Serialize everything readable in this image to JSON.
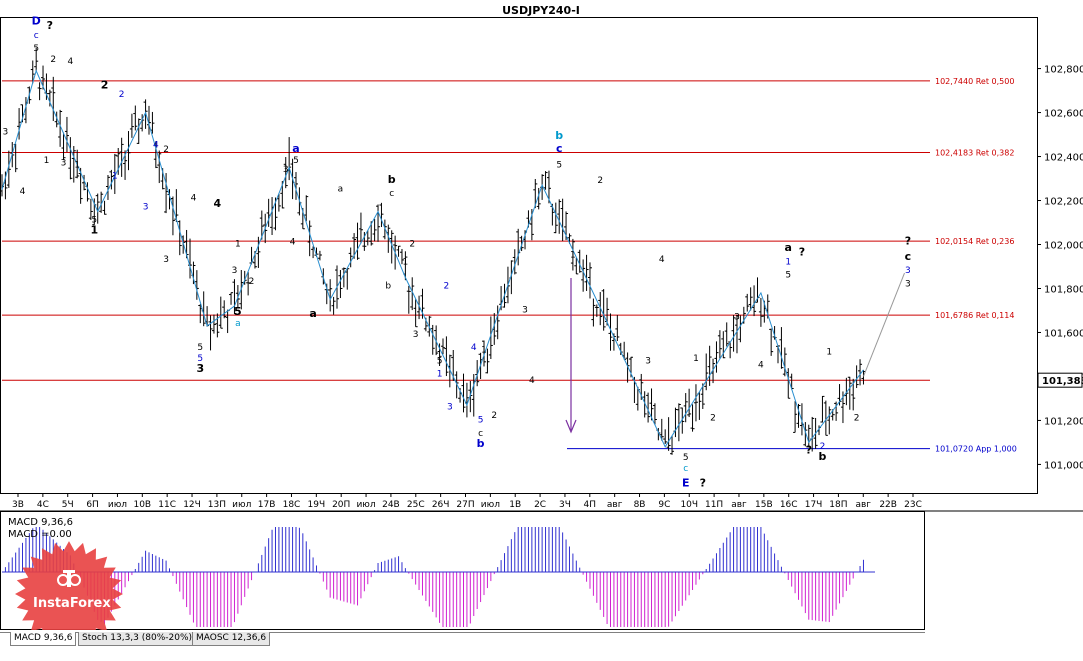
{
  "window": {
    "title": "USDJPY240-I"
  },
  "price_axis": {
    "labels": [
      "102,800",
      "102,600",
      "102,400",
      "102,200",
      "102,000",
      "101,800",
      "101,600",
      "101,400",
      "101,200",
      "101,000"
    ],
    "current_price": "101,383"
  },
  "time_axis": {
    "labels": [
      "3В",
      "4С",
      "5Ч",
      "6П",
      "июл",
      "10В",
      "11С",
      "12Ч",
      "13П",
      "июл",
      "17В",
      "18С",
      "19Ч",
      "20П",
      "июл",
      "24В",
      "25С",
      "26Ч",
      "27П",
      "июл",
      "1В",
      "2С",
      "3Ч",
      "4П",
      "авг",
      "8В",
      "9С",
      "10Ч",
      "11П",
      "авг",
      "15В",
      "16С",
      "17Ч",
      "18П",
      "авг",
      "22В",
      "23С"
    ]
  },
  "fib_levels": [
    {
      "label": "102,7440 Ret 0,500",
      "value": 102.744,
      "color": "#cc0000"
    },
    {
      "label": "102,4183 Ret 0,382",
      "value": 102.4183,
      "color": "#cc0000"
    },
    {
      "label": "102,0154 Ret 0,236",
      "value": 102.0154,
      "color": "#cc0000"
    },
    {
      "label": "101,6786 Ret 0,114",
      "value": 101.6786,
      "color": "#cc0000"
    },
    {
      "label": "",
      "value": 101.383,
      "color": "#cc0000"
    },
    {
      "label": "101,0720 App 1,000",
      "value": 101.072,
      "color": "#0000cc"
    }
  ],
  "chart_data": {
    "type": "line",
    "title": "USDJPY240-I",
    "ylim": [
      100.87,
      103.03
    ],
    "wave_path_points": [
      {
        "bar": 0,
        "price": 102.25
      },
      {
        "bar": 10,
        "price": 102.79
      },
      {
        "bar": 28,
        "price": 102.15
      },
      {
        "bar": 42,
        "price": 102.6
      },
      {
        "bar": 60,
        "price": 101.63
      },
      {
        "bar": 68,
        "price": 101.72
      },
      {
        "bar": 84,
        "price": 102.35
      },
      {
        "bar": 96,
        "price": 101.75
      },
      {
        "bar": 110,
        "price": 102.15
      },
      {
        "bar": 118,
        "price": 101.85
      },
      {
        "bar": 136,
        "price": 101.27
      },
      {
        "bar": 158,
        "price": 102.27
      },
      {
        "bar": 176,
        "price": 101.68
      },
      {
        "bar": 194,
        "price": 101.08
      },
      {
        "bar": 222,
        "price": 101.78
      },
      {
        "bar": 236,
        "price": 101.1
      },
      {
        "bar": 252,
        "price": 101.43
      }
    ],
    "projection": [
      {
        "bar": 252,
        "price": 101.4
      },
      {
        "bar": 264,
        "price": 101.87
      }
    ],
    "wave_labels": [
      {
        "text": "D",
        "bar": 10,
        "price": 103.0,
        "color": "#0000cc",
        "bold": true
      },
      {
        "text": "?",
        "bar": 14,
        "price": 102.98,
        "color": "#000",
        "bold": true
      },
      {
        "text": "c",
        "bar": 10,
        "price": 102.94,
        "color": "#0000cc",
        "bold": false
      },
      {
        "text": "5",
        "bar": 10,
        "price": 102.88,
        "color": "#000",
        "bold": false
      },
      {
        "text": "2",
        "bar": 15,
        "price": 102.83,
        "color": "#000",
        "bold": false
      },
      {
        "text": "4",
        "bar": 20,
        "price": 102.82,
        "color": "#000",
        "bold": false
      },
      {
        "text": "3",
        "bar": 1,
        "price": 102.5,
        "color": "#000",
        "bold": false
      },
      {
        "text": "4",
        "bar": 6,
        "price": 102.23,
        "color": "#000",
        "bold": false
      },
      {
        "text": "1",
        "bar": 13,
        "price": 102.37,
        "color": "#000",
        "bold": false
      },
      {
        "text": "3",
        "bar": 18,
        "price": 102.36,
        "color": "#000",
        "bold": false
      },
      {
        "text": "1",
        "bar": 22,
        "price": 102.35,
        "color": "#000",
        "bold": false
      },
      {
        "text": "2",
        "bar": 30,
        "price": 102.71,
        "color": "#000",
        "bold": true
      },
      {
        "text": "2",
        "bar": 35,
        "price": 102.67,
        "color": "#0000cc",
        "bold": false
      },
      {
        "text": "5",
        "bar": 27,
        "price": 102.1,
        "color": "#000",
        "bold": false
      },
      {
        "text": "1",
        "bar": 27,
        "price": 102.05,
        "color": "#000",
        "bold": true
      },
      {
        "text": "1",
        "bar": 33,
        "price": 102.3,
        "color": "#0000cc",
        "bold": false
      },
      {
        "text": "3",
        "bar": 42,
        "price": 102.16,
        "color": "#0000cc",
        "bold": false
      },
      {
        "text": "4",
        "bar": 45,
        "price": 102.44,
        "color": "#0000cc",
        "bold": false
      },
      {
        "text": "2",
        "bar": 48,
        "price": 102.42,
        "color": "#000",
        "bold": false
      },
      {
        "text": "4",
        "bar": 56,
        "price": 102.2,
        "color": "#000",
        "bold": false
      },
      {
        "text": "3",
        "bar": 48,
        "price": 101.92,
        "color": "#000",
        "bold": false
      },
      {
        "text": "4",
        "bar": 63,
        "price": 102.17,
        "color": "#000",
        "bold": true
      },
      {
        "text": "1",
        "bar": 69,
        "price": 101.99,
        "color": "#000",
        "bold": false
      },
      {
        "text": "3",
        "bar": 68,
        "price": 101.87,
        "color": "#000",
        "bold": false
      },
      {
        "text": "2",
        "bar": 73,
        "price": 101.82,
        "color": "#000",
        "bold": false
      },
      {
        "text": "5",
        "bar": 58,
        "price": 101.52,
        "color": "#000",
        "bold": false
      },
      {
        "text": "5",
        "bar": 58,
        "price": 101.47,
        "color": "#0000cc",
        "bold": false
      },
      {
        "text": "3",
        "bar": 58,
        "price": 101.42,
        "color": "#000",
        "bold": true
      },
      {
        "text": "5",
        "bar": 69,
        "price": 101.68,
        "color": "#000",
        "bold": true
      },
      {
        "text": "a",
        "bar": 69,
        "price": 101.63,
        "color": "#0099cc",
        "bold": false
      },
      {
        "text": "a",
        "bar": 86,
        "price": 102.42,
        "color": "#0000cc",
        "bold": true
      },
      {
        "text": "5",
        "bar": 86,
        "price": 102.37,
        "color": "#000",
        "bold": false
      },
      {
        "text": "3",
        "bar": 83,
        "price": 102.33,
        "color": "#000",
        "bold": false
      },
      {
        "text": "4",
        "bar": 85,
        "price": 102.0,
        "color": "#000",
        "bold": false
      },
      {
        "text": "a",
        "bar": 91,
        "price": 101.67,
        "color": "#000",
        "bold": true
      },
      {
        "text": "a",
        "bar": 99,
        "price": 102.24,
        "color": "#000",
        "bold": false
      },
      {
        "text": "b",
        "bar": 114,
        "price": 102.28,
        "color": "#000",
        "bold": true
      },
      {
        "text": "c",
        "bar": 114,
        "price": 102.22,
        "color": "#000",
        "bold": false
      },
      {
        "text": "2",
        "bar": 120,
        "price": 101.99,
        "color": "#000",
        "bold": false
      },
      {
        "text": "1",
        "bar": 118,
        "price": 101.91,
        "color": "#000",
        "bold": false
      },
      {
        "text": "b",
        "bar": 113,
        "price": 101.8,
        "color": "#000",
        "bold": false
      },
      {
        "text": "3",
        "bar": 121,
        "price": 101.58,
        "color": "#000",
        "bold": false
      },
      {
        "text": "2",
        "bar": 130,
        "price": 101.8,
        "color": "#0000cc",
        "bold": false
      },
      {
        "text": "5",
        "bar": 128,
        "price": 101.46,
        "color": "#000",
        "bold": false
      },
      {
        "text": "1",
        "bar": 128,
        "price": 101.4,
        "color": "#0000cc",
        "bold": false
      },
      {
        "text": "3",
        "bar": 131,
        "price": 101.25,
        "color": "#0000cc",
        "bold": false
      },
      {
        "text": "4",
        "bar": 138,
        "price": 101.52,
        "color": "#0000cc",
        "bold": false
      },
      {
        "text": "1",
        "bar": 141,
        "price": 101.51,
        "color": "#000",
        "bold": false
      },
      {
        "text": "2",
        "bar": 144,
        "price": 101.21,
        "color": "#000",
        "bold": false
      },
      {
        "text": "5",
        "bar": 140,
        "price": 101.19,
        "color": "#0000cc",
        "bold": false
      },
      {
        "text": "c",
        "bar": 140,
        "price": 101.13,
        "color": "#000",
        "bold": false
      },
      {
        "text": "b",
        "bar": 140,
        "price": 101.08,
        "color": "#0000cc",
        "bold": true
      },
      {
        "text": "3",
        "bar": 153,
        "price": 101.69,
        "color": "#000",
        "bold": false
      },
      {
        "text": "4",
        "bar": 155,
        "price": 101.37,
        "color": "#000",
        "bold": false
      },
      {
        "text": "b",
        "bar": 163,
        "price": 102.48,
        "color": "#0099cc",
        "bold": true
      },
      {
        "text": "c",
        "bar": 163,
        "price": 102.42,
        "color": "#0000cc",
        "bold": true
      },
      {
        "text": "5",
        "bar": 163,
        "price": 102.35,
        "color": "#000",
        "bold": false
      },
      {
        "text": "2",
        "bar": 175,
        "price": 102.28,
        "color": "#000",
        "bold": false
      },
      {
        "text": "1",
        "bar": 167,
        "price": 101.94,
        "color": "#000",
        "bold": false
      },
      {
        "text": "4",
        "bar": 193,
        "price": 101.92,
        "color": "#000",
        "bold": false
      },
      {
        "text": "3",
        "bar": 189,
        "price": 101.46,
        "color": "#000",
        "bold": false
      },
      {
        "text": "1",
        "bar": 203,
        "price": 101.47,
        "color": "#000",
        "bold": false
      },
      {
        "text": "2",
        "bar": 208,
        "price": 101.2,
        "color": "#000",
        "bold": false
      },
      {
        "text": "3",
        "bar": 215,
        "price": 101.66,
        "color": "#000",
        "bold": false
      },
      {
        "text": "4",
        "bar": 222,
        "price": 101.44,
        "color": "#000",
        "bold": false
      },
      {
        "text": "5",
        "bar": 200,
        "price": 101.02,
        "color": "#000",
        "bold": false
      },
      {
        "text": "c",
        "bar": 200,
        "price": 100.97,
        "color": "#0099cc",
        "bold": false
      },
      {
        "text": "E",
        "bar": 200,
        "price": 100.9,
        "color": "#0000cc",
        "bold": true
      },
      {
        "text": "?",
        "bar": 205,
        "price": 100.9,
        "color": "#000",
        "bold": true
      },
      {
        "text": "a",
        "bar": 230,
        "price": 101.97,
        "color": "#000",
        "bold": true
      },
      {
        "text": "?",
        "bar": 234,
        "price": 101.95,
        "color": "#000",
        "bold": true
      },
      {
        "text": "1",
        "bar": 230,
        "price": 101.91,
        "color": "#0000cc",
        "bold": false
      },
      {
        "text": "5",
        "bar": 230,
        "price": 101.85,
        "color": "#000",
        "bold": false
      },
      {
        "text": "1",
        "bar": 242,
        "price": 101.5,
        "color": "#000",
        "bold": false
      },
      {
        "text": "2",
        "bar": 250,
        "price": 101.2,
        "color": "#000",
        "bold": false
      },
      {
        "text": "?",
        "bar": 236,
        "price": 101.05,
        "color": "#000",
        "bold": true
      },
      {
        "text": "2",
        "bar": 240,
        "price": 101.07,
        "color": "#0000cc",
        "bold": false
      },
      {
        "text": "b",
        "bar": 240,
        "price": 101.02,
        "color": "#000",
        "bold": true
      },
      {
        "text": "?",
        "bar": 265,
        "price": 102.0,
        "color": "#000",
        "bold": true
      },
      {
        "text": "c",
        "bar": 265,
        "price": 101.93,
        "color": "#000",
        "bold": true
      },
      {
        "text": "3",
        "bar": 265,
        "price": 101.87,
        "color": "#0000cc",
        "bold": false
      },
      {
        "text": "3",
        "bar": 265,
        "price": 101.81,
        "color": "#000",
        "bold": false
      }
    ],
    "macd": {
      "label": "MACD 9,36,6",
      "sublabel": "MACD =0.00"
    }
  },
  "tabs": [
    {
      "label": "MACD 9,36,6",
      "active": true
    },
    {
      "label": "Stoch 13,3,3 (80%-20%)",
      "active": false
    },
    {
      "label": "MAOSC 12,36,6",
      "active": false
    }
  ],
  "brand": {
    "name": "InstaForex",
    "color": "#e84040"
  }
}
